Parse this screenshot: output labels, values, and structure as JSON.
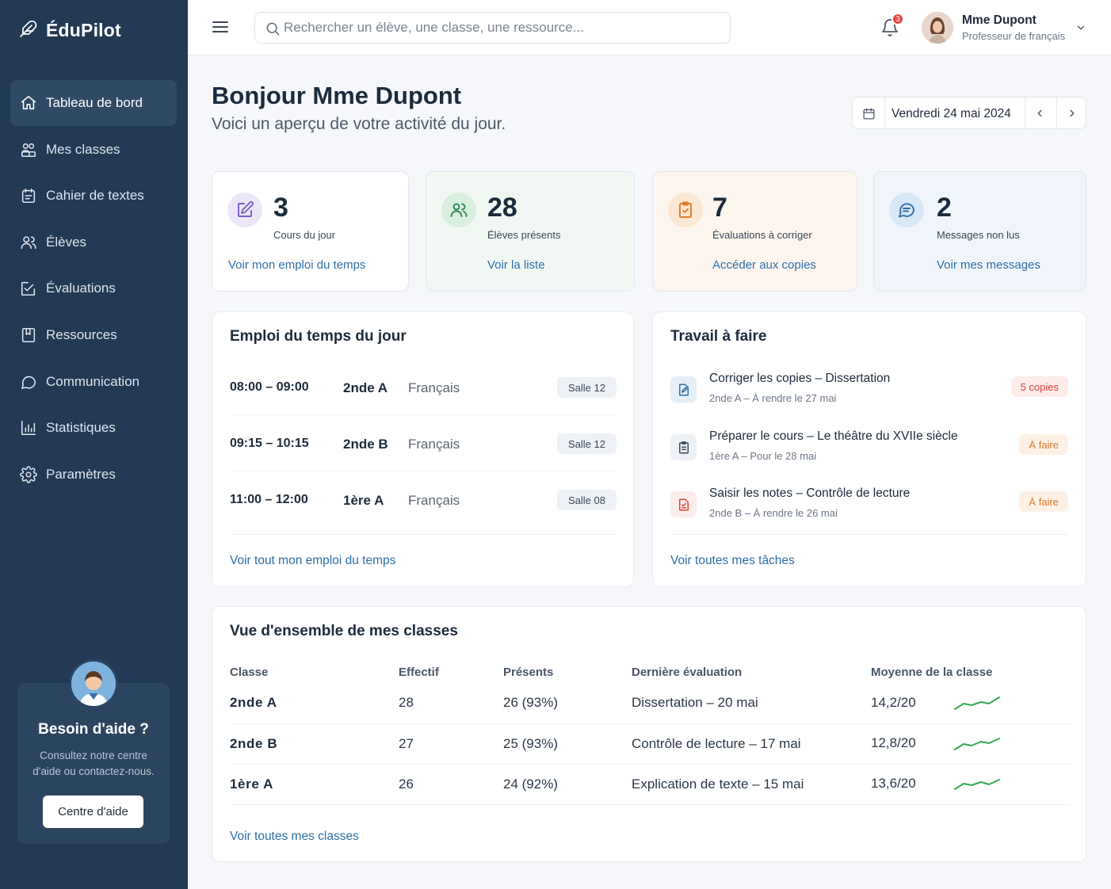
{
  "app": {
    "name": "ÉduPilot"
  },
  "sidebar": {
    "items": [
      {
        "label": "Tableau de bord",
        "icon": "home-icon",
        "active": true
      },
      {
        "label": "Mes classes",
        "icon": "classes-icon",
        "active": false
      },
      {
        "label": "Cahier de textes",
        "icon": "calendar-book-icon",
        "active": false
      },
      {
        "label": "Élèves",
        "icon": "users-icon",
        "active": false
      },
      {
        "label": "Évaluations",
        "icon": "edit-check-icon",
        "active": false
      },
      {
        "label": "Ressources",
        "icon": "book-icon",
        "active": false
      },
      {
        "label": "Communication",
        "icon": "chat-icon",
        "active": false
      },
      {
        "label": "Statistiques",
        "icon": "bar-chart-icon",
        "active": false
      },
      {
        "label": "Paramètres",
        "icon": "gear-icon",
        "active": false
      }
    ],
    "help": {
      "title": "Besoin d'aide ?",
      "text": "Consultez notre centre d'aide ou contactez-nous.",
      "button": "Centre d'aide"
    }
  },
  "topbar": {
    "search_placeholder": "Rechercher un élève, une classe, une ressource...",
    "notifications_count": "3",
    "user_name": "Mme Dupont",
    "user_role": "Professeur de français"
  },
  "header": {
    "title": "Bonjour Mme Dupont",
    "subtitle": "Voici un aperçu de votre activité du jour.",
    "date": "Vendredi 24 mai 2024"
  },
  "stats": [
    {
      "value": "3",
      "label": "Cours du jour",
      "link": "Voir mon emploi du temps",
      "icon": "edit-icon"
    },
    {
      "value": "28",
      "label": "Élèves présents",
      "link": "Voir la liste",
      "icon": "users-icon"
    },
    {
      "value": "7",
      "label": "Évaluations à corriger",
      "link": "Accéder aux copies",
      "icon": "clipboard-check-icon"
    },
    {
      "value": "2",
      "label": "Messages non lus",
      "link": "Voir mes messages",
      "icon": "message-icon"
    }
  ],
  "schedule": {
    "title": "Emploi du temps du jour",
    "rows": [
      {
        "time": "08:00 – 09:00",
        "class": "2nde A",
        "subject": "Français",
        "room": "Salle 12"
      },
      {
        "time": "09:15 – 10:15",
        "class": "2nde B",
        "subject": "Français",
        "room": "Salle 12"
      },
      {
        "time": "11:00 – 12:00",
        "class": "1ère A",
        "subject": "Français",
        "room": "Salle 08"
      }
    ],
    "link": "Voir tout mon emploi du temps"
  },
  "tasks": {
    "title": "Travail à faire",
    "items": [
      {
        "title": "Corriger les copies – Dissertation",
        "sub": "2nde A – À rendre le 27 mai",
        "badge": "5 copies",
        "icon": "edit-doc-icon"
      },
      {
        "title": "Préparer le cours – Le théâtre du XVIIe siècle",
        "sub": "1ère A – Pour le 28 mai",
        "badge": "À faire",
        "icon": "clipboard-icon"
      },
      {
        "title": "Saisir les notes – Contrôle de lecture",
        "sub": "2nde B – À rendre le 26 mai",
        "badge": "À faire",
        "icon": "grade-doc-icon"
      }
    ],
    "link": "Voir toutes mes tâches"
  },
  "classes_overview": {
    "title": "Vue d'ensemble de mes classes",
    "columns": [
      "Classe",
      "Effectif",
      "Présents",
      "Dernière évaluation",
      "Moyenne de la classe"
    ],
    "rows": [
      {
        "name": "2nde A",
        "size": "28",
        "present": "26 (93%)",
        "last_eval": "Dissertation – 20 mai",
        "average": "14,2/20"
      },
      {
        "name": "2nde B",
        "size": "27",
        "present": "25 (93%)",
        "last_eval": "Contrôle de lecture – 17 mai",
        "average": "12,8/20"
      },
      {
        "name": "1ère A",
        "size": "26",
        "present": "24 (92%)",
        "last_eval": "Explication de texte – 15 mai",
        "average": "13,6/20"
      }
    ],
    "link": "Voir toutes mes classes"
  },
  "colors": {
    "sidebar_bg": "#223a53",
    "link": "#2d6ea8",
    "sparkline": "#34a853",
    "badge_red": "#d9443b",
    "badge_orange": "#d9782e"
  }
}
